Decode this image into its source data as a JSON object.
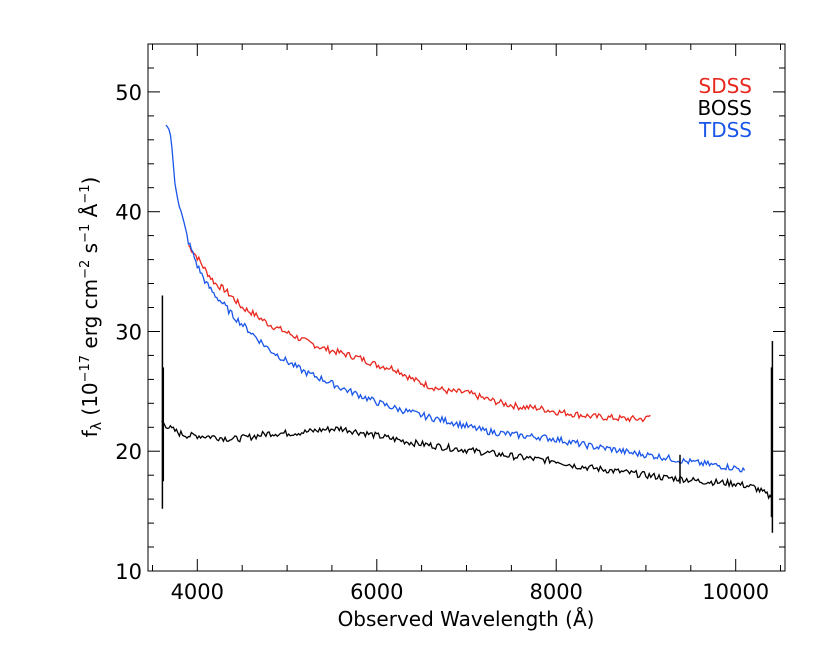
{
  "chart_data": {
    "type": "line",
    "title": "",
    "xlabel": "Observed Wavelength (Å)",
    "ylabel_parts": {
      "f": "f",
      "lambda": "λ",
      "open": " (10",
      "exp17": "−17",
      "erg": " erg cm",
      "exp2": "−2",
      "s": " s",
      "exp1a": "−1",
      "ang": " Å",
      "exp1b": "−1",
      "close": ")"
    },
    "xlim": [
      3450,
      10550
    ],
    "ylim": [
      10,
      54
    ],
    "xticks": [
      4000,
      6000,
      8000,
      10000
    ],
    "xtick_labels": [
      "4000",
      "6000",
      "8000",
      "10000"
    ],
    "yticks": [
      10,
      20,
      30,
      40,
      50
    ],
    "ytick_labels": [
      "10",
      "20",
      "30",
      "40",
      "50"
    ],
    "grid": false,
    "legend_position": "top-right",
    "legend": [
      {
        "label": "SDSS",
        "color": "#e8281e"
      },
      {
        "label": "BOSS",
        "color": "#000000"
      },
      {
        "label": "TDSS",
        "color": "#1a56e8"
      }
    ],
    "series": [
      {
        "name": "SDSS",
        "color": "#e8281e",
        "x": [
          3900,
          4000,
          4100,
          4200,
          4300,
          4400,
          4500,
          4600,
          4800,
          5000,
          5200,
          5400,
          5600,
          5800,
          6000,
          6200,
          6400,
          6600,
          6800,
          7000,
          7200,
          7400,
          7600,
          7800,
          8000,
          8200,
          8400,
          8600,
          8800,
          9000,
          9050
        ],
        "y": [
          37.2,
          36.2,
          35.0,
          34.0,
          33.5,
          32.8,
          32.0,
          31.6,
          30.6,
          29.9,
          29.2,
          28.6,
          28.2,
          27.8,
          27.2,
          26.9,
          26.0,
          25.4,
          25.0,
          24.9,
          24.4,
          24.0,
          23.7,
          23.6,
          23.3,
          23.1,
          22.9,
          22.8,
          22.7,
          22.7,
          23.0
        ]
      },
      {
        "name": "BOSS",
        "color": "#000000",
        "x": [
          3600,
          3700,
          3800,
          3900,
          4000,
          4200,
          4400,
          4600,
          4800,
          5000,
          5200,
          5400,
          5600,
          5800,
          6000,
          6200,
          6400,
          6600,
          6800,
          7000,
          7200,
          7400,
          7600,
          7800,
          8000,
          8200,
          8400,
          8600,
          8800,
          9000,
          9200,
          9400,
          9600,
          9800,
          10000,
          10200,
          10300,
          10400
        ],
        "y": [
          22.5,
          21.9,
          21.5,
          21.3,
          21.3,
          21.2,
          21.0,
          21.2,
          21.5,
          21.5,
          21.6,
          21.8,
          21.9,
          21.6,
          21.3,
          21.0,
          20.7,
          20.5,
          20.3,
          20.1,
          19.9,
          19.7,
          19.5,
          19.3,
          19.2,
          18.8,
          18.6,
          18.4,
          18.2,
          18.0,
          17.8,
          17.7,
          17.5,
          17.4,
          17.3,
          17.0,
          16.6,
          16.1
        ]
      },
      {
        "name": "TDSS",
        "color": "#1a56e8",
        "x": [
          3650,
          3700,
          3750,
          3800,
          3850,
          3900,
          4000,
          4100,
          4200,
          4300,
          4400,
          4600,
          4800,
          5000,
          5200,
          5400,
          5600,
          5800,
          6000,
          6200,
          6400,
          6600,
          6800,
          7000,
          7200,
          7400,
          7600,
          7800,
          8000,
          8200,
          8400,
          8600,
          8800,
          9000,
          9200,
          9400,
          9600,
          9800,
          10000,
          10100
        ],
        "y": [
          47.5,
          46.5,
          42.5,
          40.5,
          39.0,
          37.5,
          35.5,
          34.0,
          33.0,
          32.2,
          31.3,
          29.9,
          28.5,
          27.5,
          26.6,
          26.0,
          25.3,
          24.7,
          24.1,
          23.6,
          23.2,
          22.8,
          22.5,
          22.1,
          21.7,
          21.5,
          21.3,
          21.2,
          21.0,
          20.7,
          20.4,
          20.2,
          19.9,
          19.7,
          19.5,
          19.2,
          19.0,
          18.8,
          18.6,
          18.4
        ]
      }
    ]
  }
}
